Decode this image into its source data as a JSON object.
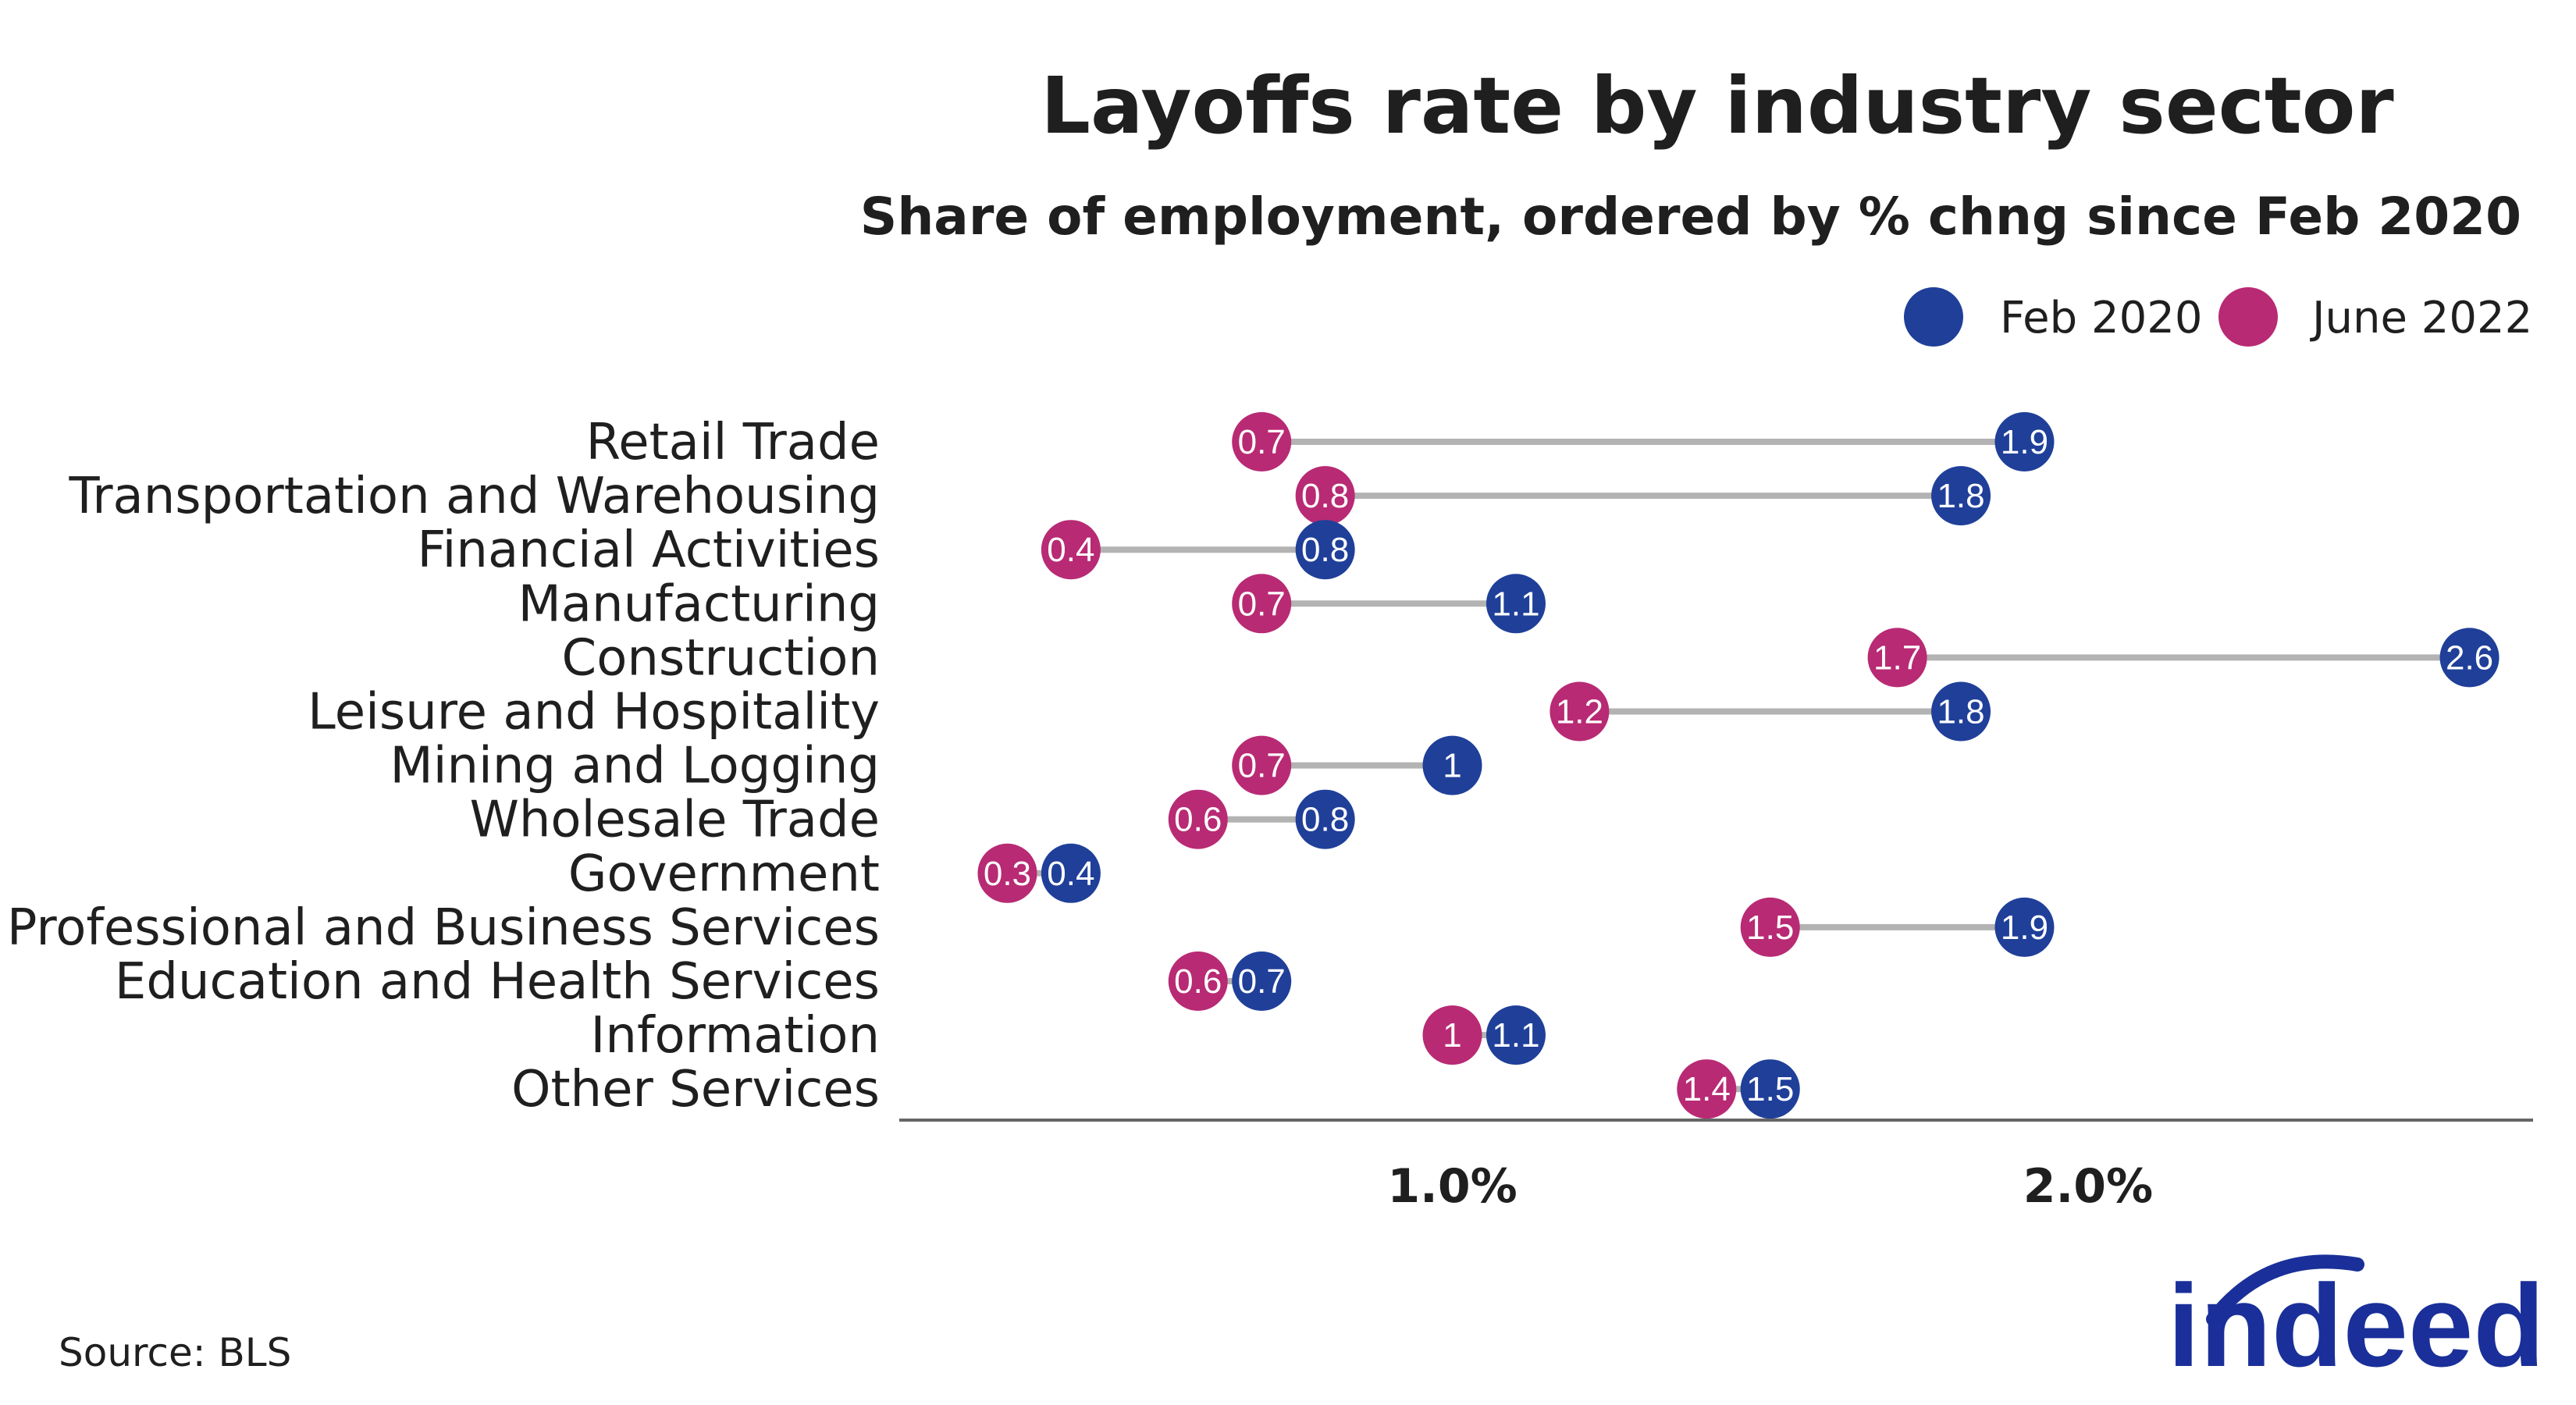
{
  "chart_data": {
    "type": "dumbbell",
    "title": "Layoffs rate by industry sector",
    "subtitle": "Share of employment, ordered by % chng since Feb 2020",
    "xlim": [
      0.13,
      2.7
    ],
    "x_ticks": [
      {
        "value": 1.0,
        "label": "1.0%"
      },
      {
        "value": 2.0,
        "label": "2.0%"
      }
    ],
    "grid": false,
    "legend_position": "top-right",
    "series": [
      {
        "name": "Feb 2020",
        "color": "#1f3f99",
        "values": [
          1.9,
          1.8,
          0.8,
          1.1,
          2.6,
          1.8,
          1,
          0.8,
          0.4,
          1.9,
          0.7,
          1.1,
          1.5
        ]
      },
      {
        "name": "June 2022",
        "color": "#b82a74",
        "values": [
          0.7,
          0.8,
          0.4,
          0.7,
          1.7,
          1.2,
          0.7,
          0.6,
          0.3,
          1.5,
          0.6,
          1,
          1.4
        ]
      }
    ],
    "categories": [
      "Retail Trade",
      "Transportation and Warehousing",
      "Financial Activities",
      "Manufacturing",
      "Construction",
      "Leisure and Hospitality",
      "Mining and Logging",
      "Wholesale Trade",
      "Government",
      "Professional and Business Services",
      "Education and Health Services",
      "Information",
      "Other Services"
    ],
    "point_labels": {
      "Feb 2020": [
        "1.9",
        "1.8",
        "0.8",
        "1.1",
        "2.6",
        "1.8",
        "1",
        "0.8",
        "0.4",
        "1.9",
        "0.7",
        "1.1",
        "1.5"
      ],
      "June 2022": [
        "0.7",
        "0.8",
        "0.4",
        "0.7",
        "1.7",
        "1.2",
        "0.7",
        "0.6",
        "0.3",
        "1.5",
        "0.6",
        "1",
        "1.4"
      ]
    },
    "connector_color": "#b3b3b3",
    "axis_color": "#666666"
  },
  "source": "Source: BLS",
  "logo": {
    "text": "indeed",
    "color": "#1a2f99"
  }
}
